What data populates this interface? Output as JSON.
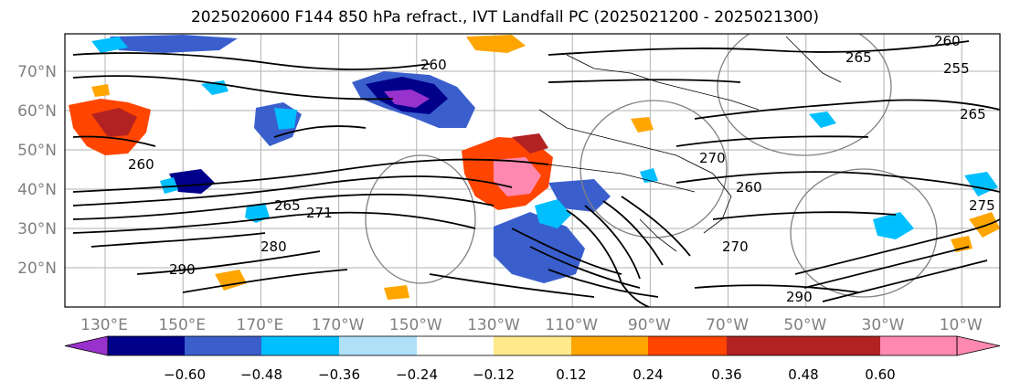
{
  "title": "2025020600 F144 850 hPa refract., IVT Landfall PC (2025021200 - 2025021300)",
  "lat_ticks": [
    "70°N",
    "60°N",
    "50°N",
    "40°N",
    "30°N",
    "20°N"
  ],
  "lon_ticks": [
    "130°E",
    "150°E",
    "170°E",
    "170°W",
    "150°W",
    "130°W",
    "110°W",
    "90°W",
    "70°W",
    "50°W",
    "30°W",
    "10°W"
  ],
  "colorbar": {
    "colors": [
      "#9932cc",
      "#00008b",
      "#3a5fcd",
      "#00bfff",
      "#aee0f8",
      "#ffffff",
      "#ffe98a",
      "#ffa500",
      "#ff4500",
      "#b22222",
      "#ff88b0"
    ],
    "labels": [
      "−0.60",
      "−0.48",
      "−0.36",
      "−0.24",
      "−0.12",
      "0.12",
      "0.24",
      "0.36",
      "0.48",
      "0.60"
    ]
  },
  "contour_labels": [
    "260",
    "265",
    "255",
    "265",
    "270",
    "260",
    "260",
    "265",
    "271",
    "280",
    "290",
    "290",
    "270",
    "260",
    "275"
  ]
}
